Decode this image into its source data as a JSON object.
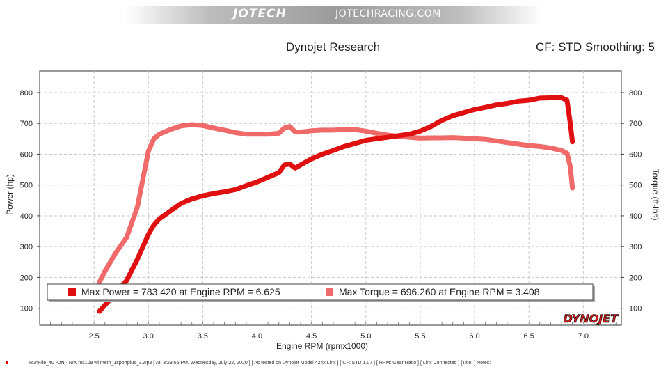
{
  "header": {
    "logo_text": "JOTECH",
    "url": "JOTECHRACING.COM",
    "title": "Dynojet Research",
    "cf_label": "CF: STD Smoothing: 5"
  },
  "chart_data": {
    "type": "line",
    "xlabel": "Engine RPM (rpmx1000)",
    "ylabel_left": "Power (hp)",
    "ylabel_right": "Torque (ft-lbs)",
    "xlim": [
      2.0,
      7.35
    ],
    "ylim": [
      45,
      870
    ],
    "x_ticks": [
      "2.5",
      "3.0",
      "3.5",
      "4.0",
      "4.5",
      "5.0",
      "5.5",
      "6.0",
      "6.5",
      "7.0"
    ],
    "y_ticks_left": [
      "100",
      "200",
      "300",
      "400",
      "500",
      "600",
      "700",
      "800"
    ],
    "y_ticks_right": [
      "100",
      "200",
      "300",
      "400",
      "500",
      "600",
      "700",
      "800"
    ],
    "grid": true,
    "legend_position": "bottom-left",
    "series": [
      {
        "name": "Max Power = 783.420 at Engine RPM = 6.625",
        "color": "#e01010",
        "x": [
          2.55,
          2.6,
          2.7,
          2.8,
          2.9,
          3.0,
          3.05,
          3.1,
          3.2,
          3.3,
          3.4,
          3.5,
          3.6,
          3.7,
          3.8,
          3.9,
          4.0,
          4.1,
          4.2,
          4.25,
          4.3,
          4.35,
          4.4,
          4.5,
          4.6,
          4.7,
          4.8,
          4.9,
          5.0,
          5.1,
          5.2,
          5.3,
          5.4,
          5.5,
          5.6,
          5.7,
          5.8,
          5.9,
          6.0,
          6.1,
          6.2,
          6.3,
          6.4,
          6.5,
          6.6,
          6.7,
          6.8,
          6.85,
          6.88,
          6.9
        ],
        "values": [
          90,
          110,
          150,
          190,
          260,
          340,
          370,
          390,
          415,
          440,
          455,
          465,
          472,
          478,
          485,
          498,
          510,
          525,
          540,
          565,
          568,
          555,
          565,
          585,
          600,
          612,
          625,
          635,
          645,
          650,
          655,
          660,
          665,
          675,
          690,
          710,
          725,
          735,
          745,
          752,
          760,
          765,
          772,
          775,
          782,
          783,
          783,
          775,
          700,
          640
        ]
      },
      {
        "name": "Max Torque = 696.260 at Engine RPM = 3.408",
        "color": "#f06a6a",
        "x": [
          2.55,
          2.6,
          2.7,
          2.8,
          2.9,
          2.95,
          3.0,
          3.05,
          3.1,
          3.2,
          3.3,
          3.4,
          3.5,
          3.6,
          3.7,
          3.8,
          3.9,
          4.0,
          4.1,
          4.2,
          4.25,
          4.3,
          4.35,
          4.4,
          4.5,
          4.6,
          4.7,
          4.8,
          4.9,
          5.0,
          5.1,
          5.2,
          5.3,
          5.4,
          5.5,
          5.6,
          5.7,
          5.8,
          5.9,
          6.0,
          6.1,
          6.2,
          6.3,
          6.4,
          6.5,
          6.6,
          6.7,
          6.8,
          6.85,
          6.88,
          6.9
        ],
        "values": [
          185,
          220,
          280,
          330,
          430,
          520,
          610,
          650,
          665,
          680,
          692,
          696,
          693,
          685,
          678,
          670,
          665,
          665,
          665,
          668,
          685,
          690,
          672,
          672,
          676,
          678,
          678,
          680,
          680,
          675,
          668,
          662,
          658,
          655,
          652,
          653,
          653,
          654,
          652,
          650,
          648,
          643,
          638,
          633,
          628,
          625,
          620,
          612,
          603,
          560,
          490
        ]
      }
    ]
  },
  "footer": {
    "text": "RunFile_40 -ON -   NIX ms109 wi meth_1sportplus_3.wp8 [ At: 3:29:56 PM, Wednesday, July 22, 2020 ] [ As tested on Dynojet Model 424x Linx ] [ CF: STD 1.07 ] [ RPM: Gear Ratio ] [ Linx Connected ] [Title: ]   Notes:",
    "watermark": "DYNOJET"
  }
}
